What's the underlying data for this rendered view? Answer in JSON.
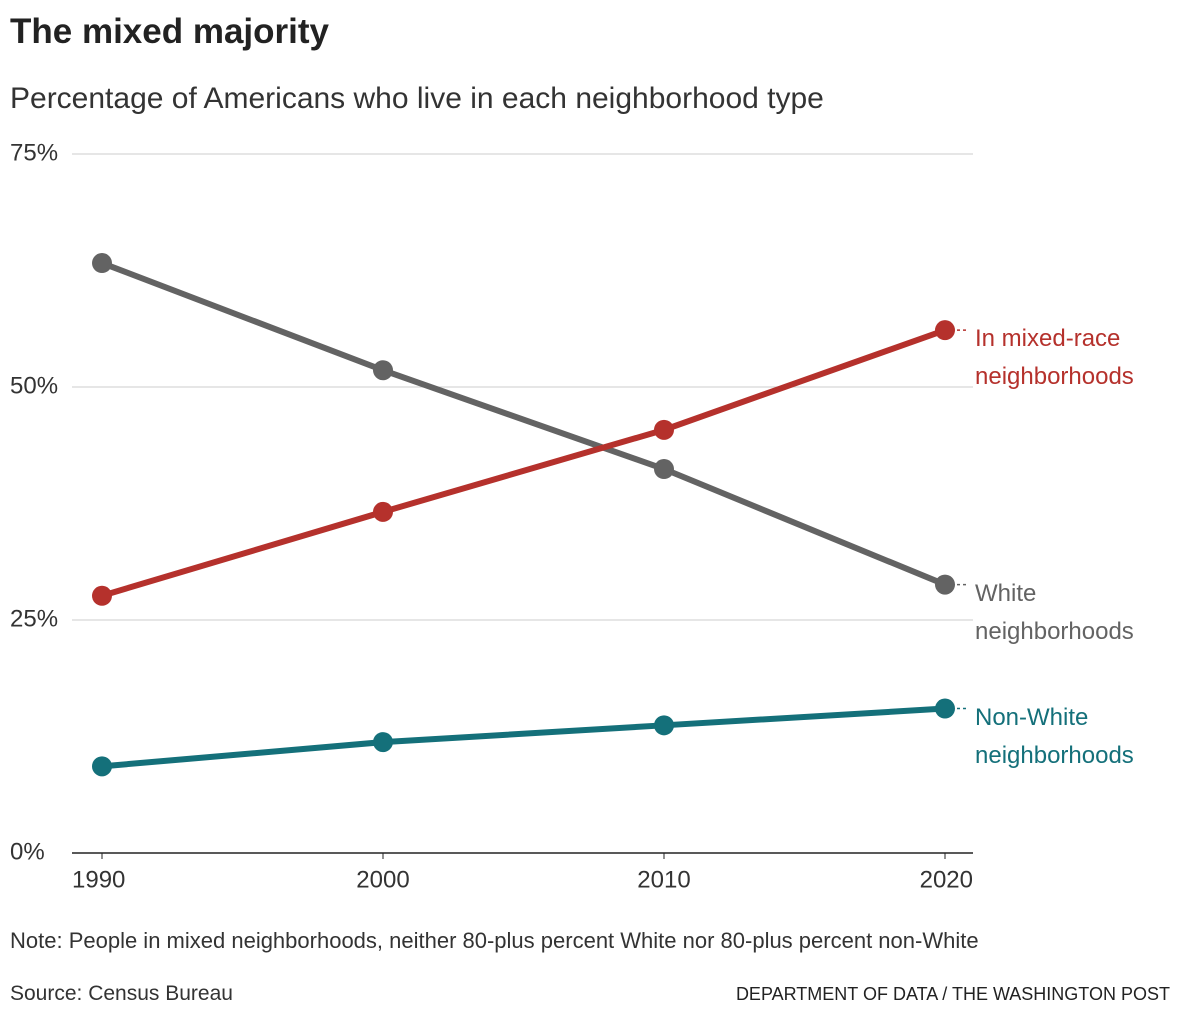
{
  "chart_data": {
    "type": "line",
    "title": "The mixed majority",
    "subtitle": "Percentage of Americans who live in each neighborhood type",
    "x": [
      1990,
      2000,
      2010,
      2020
    ],
    "xlim": [
      1990,
      2020
    ],
    "xticks": [
      1990,
      2000,
      2010,
      2020
    ],
    "ylim": [
      0,
      75
    ],
    "yticks": [
      {
        "value": 0,
        "label": "0%"
      },
      {
        "value": 25,
        "label": "25%"
      },
      {
        "value": 50,
        "label": "50%"
      },
      {
        "value": 75,
        "label": "75%"
      }
    ],
    "grid": true,
    "series": [
      {
        "name": "White neighborhoods",
        "color": "#636363",
        "values": [
          63.3,
          51.8,
          41.2,
          28.8
        ]
      },
      {
        "name": "In mixed-race neighborhoods",
        "color": "#b5312c",
        "values": [
          27.6,
          36.6,
          45.4,
          56.1
        ]
      },
      {
        "name": "Non-White neighborhoods",
        "color": "#14707a",
        "values": [
          9.3,
          11.9,
          13.7,
          15.5
        ]
      }
    ],
    "note": "Note: People in mixed neighborhoods, neither 80-plus percent White nor 80-plus percent non-White",
    "source": "Source: Census Bureau",
    "credit": "DEPARTMENT OF DATA / THE WASHINGTON POST"
  }
}
